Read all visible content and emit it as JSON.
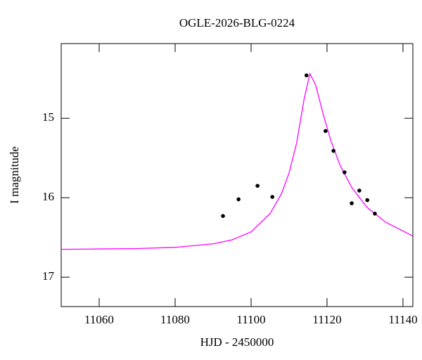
{
  "chart_data": {
    "type": "scatter",
    "title": "OGLE-2026-BLG-0224",
    "x_label": "HJD - 2450000",
    "y_label": "I magnitude",
    "xlim": [
      11050,
      11142.6
    ],
    "ylim": [
      17.37,
      14.06
    ],
    "xticks": [
      11060,
      11080,
      11100,
      11120,
      11140
    ],
    "yticks": [
      15,
      16,
      17
    ],
    "series": [
      {
        "type": "line",
        "color": "#ff00ff",
        "x": [
          11050,
          11060,
          11070,
          11080,
          11090,
          11095,
          11100,
          11105,
          11108,
          11110,
          11112,
          11114,
          11115.5,
          11117,
          11119,
          11121,
          11123.5,
          11126.5,
          11130.5,
          11135.5,
          11142.5
        ],
        "values": [
          16.65,
          16.645,
          16.64,
          16.625,
          16.58,
          16.53,
          16.43,
          16.2,
          15.95,
          15.69,
          15.31,
          14.75,
          14.44,
          14.58,
          14.95,
          15.28,
          15.6,
          15.87,
          16.12,
          16.31,
          16.48
        ]
      },
      {
        "type": "scatter",
        "color": "#000000",
        "x": [
          11092.6,
          11096.7,
          11101.7,
          11105.6,
          11114.6,
          11119.6,
          11121.7,
          11124.6,
          11126.5,
          11128.5,
          11130.6,
          11132.6
        ],
        "values": [
          16.23,
          16.02,
          15.85,
          15.99,
          14.46,
          15.16,
          15.41,
          15.68,
          16.07,
          15.91,
          16.03,
          16.2
        ]
      }
    ]
  }
}
